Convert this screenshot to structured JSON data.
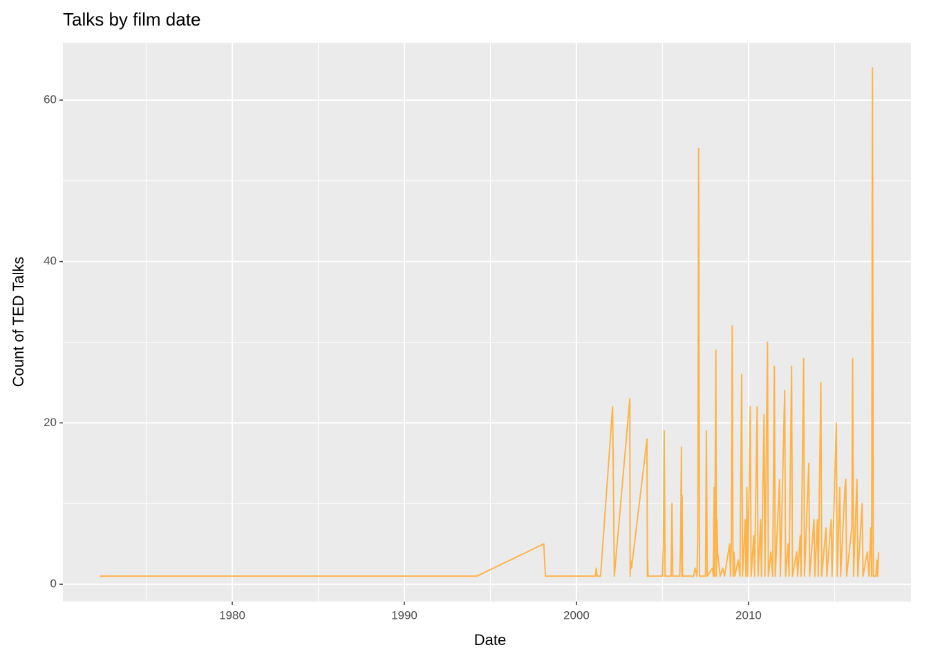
{
  "chart_data": {
    "type": "line",
    "title": "Talks by film date",
    "x_label": "Date",
    "y_label": "Count of TED Talks",
    "x": [
      1972.3,
      1994.2,
      1998.1,
      1998.2,
      2001.1,
      2001.15,
      2001.2,
      2001.4,
      2002.1,
      2002.2,
      2003.1,
      2003.12,
      2003.15,
      2003.2,
      2004.1,
      2004.12,
      2004.14,
      2004.16,
      2005.0,
      2005.05,
      2005.1,
      2005.15,
      2005.5,
      2005.55,
      2005.6,
      2006.0,
      2006.05,
      2006.1,
      2006.12,
      2006.14,
      2006.16,
      2006.8,
      2006.9,
      2007.0,
      2007.05,
      2007.1,
      2007.15,
      2007.5,
      2007.55,
      2007.6,
      2007.9,
      2007.95,
      2008.0,
      2008.03,
      2008.06,
      2008.1,
      2008.13,
      2008.16,
      2008.2,
      2008.3,
      2008.35,
      2008.5,
      2008.6,
      2008.9,
      2008.95,
      2009.0,
      2009.05,
      2009.1,
      2009.15,
      2009.2,
      2009.4,
      2009.5,
      2009.6,
      2009.65,
      2009.8,
      2009.85,
      2009.9,
      2009.95,
      2010.1,
      2010.15,
      2010.3,
      2010.35,
      2010.5,
      2010.55,
      2010.7,
      2010.75,
      2010.9,
      2010.95,
      2011.1,
      2011.15,
      2011.3,
      2011.4,
      2011.5,
      2011.55,
      2011.8,
      2011.85,
      2012.1,
      2012.15,
      2012.3,
      2012.35,
      2012.5,
      2012.55,
      2012.8,
      2012.85,
      2013.0,
      2013.05,
      2013.2,
      2013.25,
      2013.5,
      2013.55,
      2013.8,
      2013.85,
      2014.0,
      2014.05,
      2014.2,
      2014.25,
      2014.5,
      2014.55,
      2014.8,
      2014.85,
      2015.1,
      2015.15,
      2015.3,
      2015.35,
      2015.6,
      2015.65,
      2015.7,
      2016.0,
      2016.05,
      2016.1,
      2016.3,
      2016.35,
      2016.6,
      2016.65,
      2016.9,
      2017.0,
      2017.1,
      2017.15,
      2017.2,
      2017.25,
      2017.4,
      2017.45,
      2017.5,
      2017.55
    ],
    "series": [
      {
        "color": "#ffb347",
        "values": [
          1,
          1,
          5,
          1,
          1,
          2,
          1,
          1,
          22,
          1,
          23,
          1,
          3,
          2,
          18,
          1,
          3,
          1,
          1,
          5,
          19,
          1,
          1,
          10,
          1,
          1,
          5,
          17,
          1,
          11,
          1,
          1,
          2,
          1,
          6,
          54,
          1,
          1,
          19,
          1,
          2,
          1,
          12,
          1,
          12,
          29,
          1,
          8,
          4,
          2,
          1,
          2,
          1,
          5,
          1,
          5,
          32,
          1,
          4,
          1,
          3,
          1,
          26,
          1,
          8,
          1,
          12,
          1,
          22,
          1,
          6,
          1,
          22,
          1,
          8,
          1,
          21,
          1,
          30,
          1,
          4,
          1,
          27,
          1,
          13,
          1,
          24,
          1,
          5,
          1,
          27,
          1,
          4,
          1,
          6,
          1,
          28,
          1,
          15,
          1,
          8,
          1,
          8,
          1,
          25,
          1,
          7,
          1,
          8,
          1,
          20,
          1,
          12,
          1,
          12,
          13,
          1,
          7,
          28,
          1,
          13,
          1,
          10,
          1,
          4,
          1,
          7,
          1,
          64,
          1,
          1,
          3,
          1,
          4
        ]
      }
    ],
    "xlim": [
      1970.16,
      2019.44
    ],
    "xticks": [
      1980,
      1990,
      2000,
      2010
    ],
    "x_minor_grid": [
      1975,
      1985,
      1995,
      2005,
      2015
    ],
    "ylim": [
      -2.14,
      67.1
    ],
    "yticks": [
      0,
      20,
      40,
      60
    ],
    "y_minor_grid": [
      10,
      30,
      50
    ],
    "grid": true
  }
}
